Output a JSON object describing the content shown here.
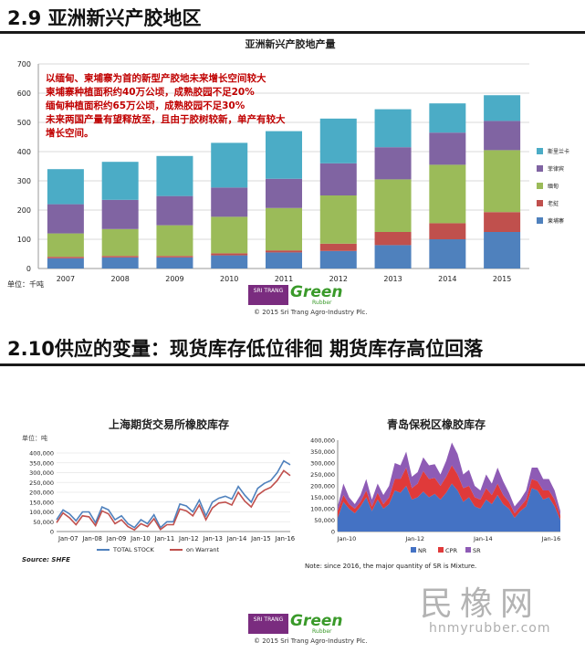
{
  "section1": {
    "title": "2.9 亚洲新兴产胶地区"
  },
  "section2": {
    "title": "2.10供应的变量：现货库存低位徘徊 期货库存高位回落"
  },
  "logo": {
    "badge": "SRI TRANG",
    "brand": "Green",
    "sub": "Rubber",
    "copyright": "© 2015 Sri Trang Agro-Industry Plc."
  },
  "watermark": {
    "text": "民橡网",
    "url": "hnmyrubber.com"
  },
  "chart_data": [
    {
      "type": "bar",
      "stacked": true,
      "title": "亚洲新兴产胶地产量",
      "unit_label": "单位：千吨",
      "categories": [
        "2007",
        "2008",
        "2009",
        "2010",
        "2011",
        "2012",
        "2013",
        "2014",
        "2015"
      ],
      "ylim": [
        0,
        700
      ],
      "yticks": [
        0,
        100,
        200,
        300,
        400,
        500,
        600,
        700
      ],
      "series": [
        {
          "name": "柬埔寨",
          "color": "#4f81bd",
          "values": [
            35,
            38,
            38,
            45,
            55,
            60,
            80,
            100,
            125
          ]
        },
        {
          "name": "老挝",
          "color": "#c0504d",
          "values": [
            5,
            5,
            5,
            7,
            7,
            25,
            45,
            55,
            68
          ]
        },
        {
          "name": "缅甸",
          "color": "#9bbb59",
          "values": [
            80,
            92,
            105,
            125,
            145,
            165,
            180,
            200,
            212
          ]
        },
        {
          "name": "菲律宾",
          "color": "#8064a2",
          "values": [
            100,
            100,
            100,
            100,
            100,
            110,
            110,
            110,
            100
          ]
        },
        {
          "name": "斯里兰卡",
          "color": "#4bacc6",
          "values": [
            120,
            130,
            137,
            153,
            163,
            153,
            130,
            100,
            88
          ]
        }
      ],
      "legend_position": "right",
      "annotation": [
        "以缅甸、柬埔寨为首的新型产胶地未来增长空间较大",
        "柬埔寨种植面积约40万公顷，成熟胶园不足20%",
        "缅甸种植面积约65万公顷，成熟胶园不足30%",
        "未来两国产量有望释放至，且由于胶树较新，单产有较大",
        "增长空间。"
      ]
    },
    {
      "type": "line",
      "title": "上海期货交易所橡胶库存",
      "unit_label": "单位：吨",
      "source": "Source: SHFE",
      "x_ticks": [
        "Jan-07",
        "Jan-08",
        "Jan-09",
        "Jan-10",
        "Jan-11",
        "Jan-12",
        "Jan-13",
        "Jan-14",
        "Jan-15",
        "Jan-16"
      ],
      "ylim": [
        0,
        400000
      ],
      "yticks": [
        "0",
        "50,000",
        "100,000",
        "150,000",
        "200,000",
        "250,000",
        "300,000",
        "350,000",
        "400,000"
      ],
      "series": [
        {
          "name": "TOTAL STOCK",
          "color": "#4f81bd",
          "values": [
            60000,
            110000,
            90000,
            55000,
            100000,
            100000,
            45000,
            125000,
            110000,
            60000,
            80000,
            40000,
            20000,
            60000,
            40000,
            85000,
            20000,
            50000,
            50000,
            140000,
            130000,
            100000,
            160000,
            80000,
            150000,
            170000,
            180000,
            165000,
            230000,
            185000,
            150000,
            220000,
            245000,
            260000,
            300000,
            360000,
            340000
          ]
        },
        {
          "name": "on Warrant",
          "color": "#c0504d",
          "values": [
            45000,
            95000,
            70000,
            35000,
            80000,
            75000,
            30000,
            105000,
            90000,
            40000,
            60000,
            25000,
            8000,
            40000,
            25000,
            65000,
            10000,
            35000,
            35000,
            115000,
            105000,
            80000,
            135000,
            60000,
            120000,
            145000,
            150000,
            135000,
            200000,
            155000,
            125000,
            185000,
            210000,
            225000,
            260000,
            310000,
            285000
          ]
        }
      ]
    },
    {
      "type": "area",
      "stacked": true,
      "title": "青岛保税区橡胶库存",
      "note": "Note: since 2016, the major quantity of SR is Mixture.",
      "x_ticks": [
        "Jan-10",
        "Jan-12",
        "Jan-14",
        "Jan-16"
      ],
      "ylim": [
        0,
        400000
      ],
      "yticks": [
        "0",
        "50,000",
        "100,000",
        "150,000",
        "200,000",
        "250,000",
        "300,000",
        "350,000",
        "400,000"
      ],
      "series": [
        {
          "name": "NR",
          "color": "#4472c4",
          "values": [
            60000,
            130000,
            100000,
            80000,
            110000,
            150000,
            90000,
            140000,
            100000,
            120000,
            180000,
            170000,
            200000,
            140000,
            150000,
            175000,
            150000,
            165000,
            140000,
            170000,
            210000,
            180000,
            130000,
            150000,
            110000,
            100000,
            140000,
            120000,
            160000,
            120000,
            100000,
            60000,
            90000,
            110000,
            190000,
            180000,
            140000,
            150000,
            110000,
            50000
          ]
        },
        {
          "name": "CPR",
          "color": "#e03a3a",
          "values": [
            30000,
            30000,
            20000,
            20000,
            20000,
            30000,
            20000,
            30000,
            20000,
            30000,
            50000,
            60000,
            80000,
            50000,
            60000,
            90000,
            80000,
            70000,
            60000,
            70000,
            80000,
            70000,
            60000,
            50000,
            40000,
            40000,
            50000,
            40000,
            50000,
            40000,
            30000,
            20000,
            20000,
            30000,
            40000,
            40000,
            40000,
            30000,
            30000,
            20000
          ]
        },
        {
          "name": "SR",
          "color": "#8e5bb5",
          "values": [
            20000,
            50000,
            30000,
            20000,
            30000,
            50000,
            30000,
            40000,
            40000,
            50000,
            70000,
            60000,
            70000,
            50000,
            50000,
            60000,
            60000,
            60000,
            50000,
            70000,
            100000,
            90000,
            60000,
            70000,
            50000,
            40000,
            60000,
            50000,
            70000,
            60000,
            40000,
            30000,
            30000,
            40000,
            50000,
            60000,
            50000,
            50000,
            40000,
            20000
          ]
        }
      ]
    }
  ]
}
